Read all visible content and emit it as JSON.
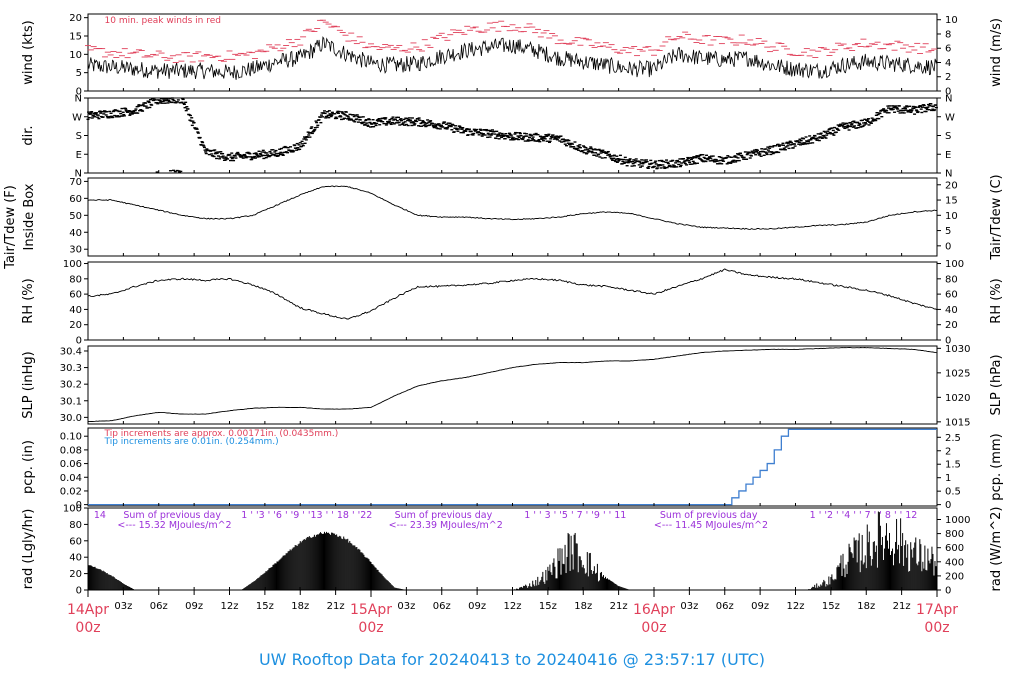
{
  "title": "UW Rooftop Data for 20240413  to  20240416 @ 23:57:17  (UTC)",
  "colors": {
    "axis": "#000000",
    "peak": "#e0405a",
    "title": "#1e90e0",
    "radiation_note": "#9b30d9",
    "pcp_fine": "#e0405a",
    "pcp_coarse": "#1e90e0",
    "pcp_line": "#3f7fd0",
    "day_labels": "#e0405a"
  },
  "x_axis": {
    "range_hours": [
      0,
      72
    ],
    "hour_ticks": [
      "03z",
      "06z",
      "09z",
      "12z",
      "15z",
      "18z",
      "21z",
      "03z",
      "06z",
      "09z",
      "12z",
      "15z",
      "18z",
      "21z",
      "03z",
      "06z",
      "09z",
      "12z",
      "15z",
      "18z",
      "21z"
    ],
    "day_labels": [
      {
        "date": "14Apr",
        "time": "00z"
      },
      {
        "date": "15Apr",
        "time": "00z"
      },
      {
        "date": "16Apr",
        "time": "00z"
      },
      {
        "date": "17Apr",
        "time": "00z"
      }
    ]
  },
  "chart_data": [
    {
      "type": "line",
      "id": "wind",
      "ylabel": "wind (kts)",
      "ylabel_right": "wind (m/s)",
      "ylim": [
        0,
        21
      ],
      "yticks": [
        "0",
        "5",
        "10",
        "15",
        "20"
      ],
      "yticks_right": [
        "0",
        "2",
        "4",
        "6",
        "8",
        "10"
      ],
      "annotation": "10 min. peak winds in red",
      "series": [
        {
          "name": "wind",
          "x": [
            0,
            2,
            4,
            6,
            8,
            10,
            12,
            14,
            16,
            18,
            20,
            22,
            24,
            26,
            28,
            30,
            32,
            34,
            36,
            38,
            40,
            42,
            44,
            46,
            48,
            50,
            52,
            54,
            56,
            58,
            60,
            62,
            64,
            66,
            68,
            70,
            72
          ],
          "values": [
            7,
            6.5,
            6,
            5.5,
            5.5,
            5.5,
            5,
            6,
            8,
            9,
            13,
            10,
            7.5,
            7,
            7.5,
            9.5,
            11,
            12,
            12.5,
            11,
            9,
            8,
            7,
            6,
            6,
            10,
            9,
            8.5,
            9,
            7,
            6,
            5.5,
            7,
            8,
            7.5,
            7,
            6.5
          ]
        },
        {
          "name": "peak",
          "x": [
            0,
            2,
            4,
            6,
            8,
            10,
            12,
            14,
            16,
            18,
            20,
            22,
            24,
            26,
            28,
            30,
            32,
            34,
            36,
            38,
            40,
            42,
            44,
            46,
            48,
            50,
            52,
            54,
            56,
            58,
            60,
            62,
            64,
            66,
            68,
            70,
            72
          ],
          "values": [
            11,
            10.5,
            10,
            9.5,
            9,
            9.5,
            9.5,
            10,
            12,
            14,
            19,
            15,
            12,
            11.5,
            12,
            14.5,
            16.5,
            17.5,
            18,
            16.5,
            14,
            13,
            12,
            11,
            11,
            15,
            14,
            13.5,
            14,
            12,
            11,
            10.5,
            12,
            13,
            12.5,
            12,
            11
          ]
        }
      ]
    },
    {
      "type": "scatter",
      "id": "dir",
      "ylabel": "dir.",
      "yticks": [
        "N",
        "E",
        "S",
        "W",
        "N"
      ],
      "series": [
        {
          "name": "direction (deg)",
          "x": [
            0,
            2,
            4,
            6,
            8,
            10,
            12,
            14,
            16,
            18,
            20,
            22,
            24,
            26,
            28,
            30,
            32,
            34,
            36,
            38,
            40,
            42,
            44,
            46,
            48,
            50,
            52,
            54,
            56,
            58,
            60,
            62,
            64,
            66,
            68,
            70,
            72
          ],
          "values": [
            275,
            285,
            300,
            350,
            355,
            100,
            75,
            85,
            95,
            130,
            280,
            275,
            240,
            250,
            245,
            230,
            200,
            190,
            175,
            170,
            165,
            115,
            85,
            50,
            40,
            45,
            70,
            60,
            85,
            110,
            140,
            170,
            220,
            240,
            310,
            300,
            320
          ]
        }
      ]
    },
    {
      "type": "line",
      "id": "temp",
      "ylabel": "Tair/Tdew (F)",
      "ylabel2": "Inside Box",
      "ylabel_right": "Tair/Tdew (C)",
      "ylim": [
        26,
        72
      ],
      "yticks": [
        "30",
        "40",
        "50",
        "60",
        "70"
      ],
      "yticks_right": [
        "0",
        "5",
        "10",
        "15",
        "20"
      ],
      "series": [
        {
          "name": "temp",
          "x": [
            0,
            2,
            4,
            6,
            8,
            10,
            12,
            14,
            16,
            18,
            20,
            22,
            24,
            26,
            28,
            30,
            32,
            34,
            36,
            38,
            40,
            42,
            44,
            46,
            48,
            50,
            52,
            54,
            56,
            58,
            60,
            62,
            64,
            66,
            68,
            70,
            72
          ],
          "values": [
            59,
            59,
            56,
            53,
            50,
            48,
            48,
            50,
            56,
            62,
            67,
            67,
            63,
            56,
            50,
            49,
            49,
            48,
            47.5,
            48,
            49,
            51,
            52,
            51,
            48,
            45,
            43,
            42.5,
            42,
            42,
            43,
            44,
            44.5,
            46,
            50,
            52,
            53
          ]
        }
      ]
    },
    {
      "type": "line",
      "id": "rh",
      "ylabel": "RH (%)",
      "ylabel_right": "RH (%)",
      "ylim": [
        0,
        102
      ],
      "yticks": [
        "0",
        "20",
        "40",
        "60",
        "80",
        "100"
      ],
      "yticks_right": [
        "0",
        "20",
        "40",
        "60",
        "80",
        "100"
      ],
      "series": [
        {
          "name": "RH",
          "x": [
            0,
            2,
            4,
            6,
            8,
            10,
            12,
            14,
            16,
            18,
            20,
            22,
            24,
            26,
            28,
            30,
            32,
            34,
            36,
            38,
            40,
            42,
            44,
            46,
            48,
            50,
            52,
            54,
            56,
            58,
            60,
            62,
            64,
            66,
            68,
            70,
            72
          ],
          "values": [
            57,
            60,
            70,
            78,
            80,
            78,
            80,
            72,
            60,
            42,
            34,
            27,
            38,
            55,
            70,
            70,
            72,
            74,
            78,
            80,
            78,
            72,
            70,
            65,
            60,
            70,
            80,
            92,
            85,
            82,
            80,
            75,
            70,
            65,
            58,
            48,
            40
          ]
        }
      ]
    },
    {
      "type": "line",
      "id": "slp",
      "ylabel": "SLP (inHg)",
      "ylabel_right": "SLP (hPa)",
      "ylim": [
        29.96,
        30.43
      ],
      "yticks": [
        "30.0",
        "30.1",
        "30.2",
        "30.3",
        "30.4"
      ],
      "yticks_right": [
        "1015",
        "1020",
        "1025",
        "1030"
      ],
      "series": [
        {
          "name": "SLP",
          "x": [
            0,
            2,
            4,
            6,
            8,
            10,
            12,
            14,
            16,
            18,
            20,
            22,
            24,
            26,
            28,
            30,
            32,
            34,
            36,
            38,
            40,
            42,
            44,
            46,
            48,
            50,
            52,
            54,
            56,
            58,
            60,
            62,
            64,
            66,
            68,
            70,
            72
          ],
          "values": [
            29.975,
            29.98,
            30.01,
            30.03,
            30.02,
            30.02,
            30.04,
            30.055,
            30.06,
            30.06,
            30.05,
            30.05,
            30.06,
            30.13,
            30.19,
            30.22,
            30.24,
            30.27,
            30.3,
            30.32,
            30.33,
            30.33,
            30.34,
            30.34,
            30.35,
            30.37,
            30.39,
            30.4,
            30.405,
            30.41,
            30.41,
            30.415,
            30.42,
            30.42,
            30.415,
            30.41,
            30.39
          ]
        }
      ]
    },
    {
      "type": "line",
      "id": "pcp",
      "ylabel": "pcp. (in)",
      "ylabel_right": "pcp. (mm)",
      "ylim": [
        -0.002,
        0.112
      ],
      "yticks": [
        "0",
        "0.02",
        "0.04",
        "0.06",
        "0.08",
        "0.10"
      ],
      "yticks_right": [
        "0",
        "0.5",
        "1",
        "1.5",
        "2",
        "2.5"
      ],
      "annotations": [
        "Tip increments are approx. 0.00171in. (0.0435mm.)",
        "Tip increments are 0.01in. (0.254mm.)"
      ],
      "series": [
        {
          "name": "pcp",
          "x": [
            0,
            54,
            54.6,
            55.2,
            55.8,
            56.4,
            57.0,
            57.6,
            58.2,
            58.8,
            59.4,
            72
          ],
          "values": [
            0,
            0,
            0.01,
            0.02,
            0.03,
            0.04,
            0.05,
            0.06,
            0.08,
            0.1,
            0.11,
            0.11
          ]
        }
      ]
    },
    {
      "type": "area",
      "id": "rad",
      "ylabel": "rad (Lgly/hr)",
      "ylabel_right": "rad (W/m^2)",
      "ylim": [
        0,
        100
      ],
      "yticks": [
        "0",
        "20",
        "40",
        "60",
        "80",
        "100"
      ],
      "yticks_right": [
        "0",
        "200",
        "400",
        "600",
        "800",
        "1000"
      ],
      "hour_marks": [
        {
          "x": 0.5,
          "label": "14"
        },
        {
          "x": 13,
          "label": "1 ' '3 ' '6 ' '9 ' '13 ' ' 18 ' '22"
        },
        {
          "x": 37,
          "label": "1 ' ' 3 ' '5 ' 7 ' '9 ' ' 11"
        },
        {
          "x": 61.2,
          "label": "1 ' '2 ' '4 ' ' 7 ' ' 8 ' ' 12"
        }
      ],
      "daily_sums": [
        {
          "x": 3,
          "label": "Sum of previous day",
          "value": "<--- 15.32 MJoules/m^2"
        },
        {
          "x": 26,
          "label": "Sum of previous day",
          "value": "<--- 23.39 MJoules/m^2"
        },
        {
          "x": 48.5,
          "label": "Sum of previous day",
          "value": "<--- 11.45 MJoules/m^2"
        }
      ],
      "series": [
        {
          "name": "radiation",
          "x": [
            0,
            1,
            2,
            3,
            4,
            13,
            14,
            15,
            16,
            17,
            18,
            19,
            20,
            21,
            22,
            23,
            24,
            25,
            26,
            27,
            28,
            29,
            30,
            31,
            32,
            33,
            34,
            35,
            36,
            37,
            38,
            39,
            40,
            41,
            42,
            43,
            44,
            45,
            46,
            47,
            48,
            49,
            50,
            51,
            52,
            53,
            54,
            55,
            56,
            57,
            58,
            59,
            60,
            61,
            62,
            63,
            64,
            65,
            66,
            67,
            68,
            69,
            70,
            71,
            72
          ],
          "values": [
            32,
            26,
            18,
            8,
            0,
            0,
            10,
            22,
            35,
            48,
            60,
            68,
            72,
            70,
            63,
            50,
            35,
            18,
            3,
            0,
            0,
            0,
            0,
            0,
            0,
            0,
            0,
            0,
            0,
            5,
            12,
            24,
            45,
            62,
            50,
            30,
            15,
            5,
            0,
            0,
            0,
            0,
            0,
            0,
            0,
            0,
            0,
            0,
            0,
            0,
            0,
            0,
            0,
            0,
            8,
            15,
            40,
            52,
            64,
            78,
            82,
            70,
            55,
            48,
            42
          ]
        }
      ]
    }
  ]
}
